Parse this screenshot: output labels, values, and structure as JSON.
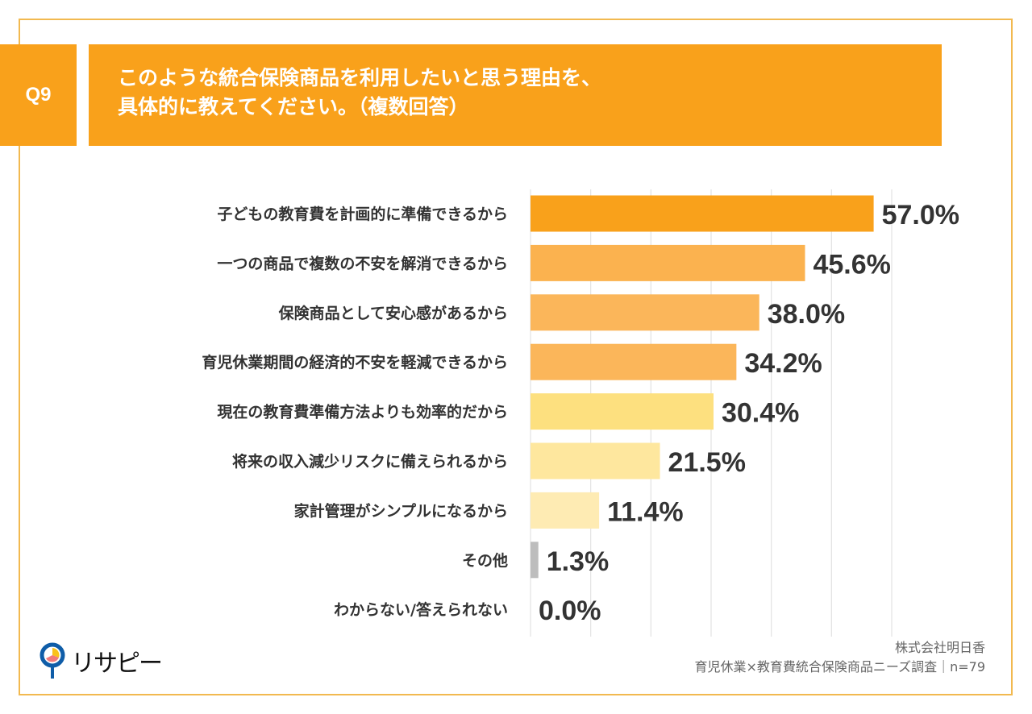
{
  "header": {
    "q_number": "Q9",
    "title_lines": [
      "このような統合保険商品を利用したいと思う理由を、",
      "具体的に教えてください。（複数回答）"
    ]
  },
  "chart_data": {
    "type": "bar",
    "orientation": "horizontal",
    "title": "このような統合保険商品を利用したいと思う理由を、具体的に教えてください。（複数回答）",
    "categories": [
      "子どもの教育費を計画的に準備できるから",
      "一つの商品で複数の不安を解消できるから",
      "保険商品として安心感があるから",
      "育児休業期間の経済的不安を軽減できるから",
      "現在の教育費準備方法よりも効率的だから",
      "将来の収入減少リスクに備えられるから",
      "家計管理がシンプルになるから",
      "その他",
      "わからない/答えられない"
    ],
    "values": [
      57.0,
      45.6,
      38.0,
      34.2,
      30.4,
      21.5,
      11.4,
      1.3,
      0.0
    ],
    "value_labels": [
      "57.0%",
      "45.6%",
      "38.0%",
      "34.2%",
      "30.4%",
      "21.5%",
      "11.4%",
      "1.3%",
      "0.0%"
    ],
    "colors": [
      "#F9A11B",
      "#FBB24F",
      "#FBB65A",
      "#FBB65A",
      "#FDE07F",
      "#FEE79E",
      "#FEEBB3",
      "#BDBDBD",
      "#BDBDBD"
    ],
    "xlim": [
      0,
      60
    ],
    "grid_step": 10,
    "grid": true,
    "xlabel": "",
    "ylabel": ""
  },
  "footer": {
    "logo": "リサピー",
    "company": "株式会社明日香",
    "survey": "育児休業×教育費統合保険商品ニーズ調査｜n=79"
  }
}
